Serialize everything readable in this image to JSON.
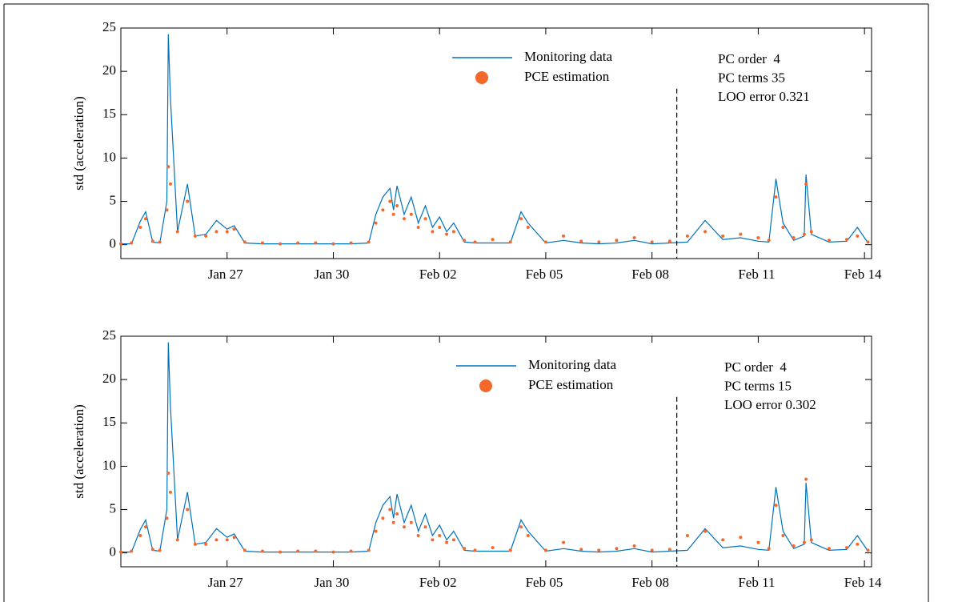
{
  "chart_data": [
    {
      "type": "line",
      "y_label": "std (acceleration)",
      "xlim": [
        24,
        45.2
      ],
      "ylim": [
        -1.6,
        25
      ],
      "xticks": [
        {
          "value": 27,
          "label": "Jan 27"
        },
        {
          "value": 30,
          "label": "Jan 30"
        },
        {
          "value": 33,
          "label": "Feb 02"
        },
        {
          "value": 36,
          "label": "Feb 05"
        },
        {
          "value": 39,
          "label": "Feb 08"
        },
        {
          "value": 42,
          "label": "Feb 11"
        },
        {
          "value": 45,
          "label": "Feb 14"
        }
      ],
      "yticks": [
        0,
        5,
        10,
        15,
        20,
        25
      ],
      "vline": {
        "x": 39.7,
        "ymax": 18
      },
      "annotations": [
        "PC order  4",
        "PC terms 35",
        "LOO error 0.321"
      ],
      "x": [
        24.0,
        24.3,
        24.55,
        24.7,
        24.9,
        25.1,
        25.3,
        25.34,
        25.4,
        25.6,
        25.88,
        26.1,
        26.4,
        26.7,
        27.0,
        27.2,
        27.5,
        28.0,
        28.5,
        29.0,
        29.5,
        30.0,
        30.5,
        31.0,
        31.2,
        31.4,
        31.6,
        31.7,
        31.8,
        32.0,
        32.2,
        32.4,
        32.6,
        32.8,
        33.0,
        33.2,
        33.4,
        33.7,
        34.0,
        34.5,
        35.0,
        35.3,
        35.5,
        36.0,
        36.5,
        37.0,
        37.5,
        38.0,
        38.5,
        39.0,
        39.5,
        40.0,
        40.5,
        41.0,
        41.5,
        42.0,
        42.3,
        42.5,
        42.7,
        43.0,
        43.3,
        43.35,
        43.5,
        44.0,
        44.5,
        44.8,
        45.1
      ],
      "series": [
        {
          "name": "Monitoring data",
          "style": "line",
          "color": "#0072bd",
          "values": [
            0.1,
            0.1,
            2.7,
            3.8,
            0.3,
            0.2,
            5,
            24.3,
            17,
            1.5,
            7,
            1,
            1.2,
            2.8,
            1.8,
            2.2,
            0.2,
            0.1,
            0.1,
            0.1,
            0.1,
            0.1,
            0.1,
            0.2,
            3.5,
            5.5,
            6.5,
            4,
            6.8,
            3.5,
            5.5,
            2.5,
            4.5,
            2,
            3.2,
            1.5,
            2.5,
            0.3,
            0.2,
            0.2,
            0.2,
            3.8,
            2.5,
            0.2,
            0.5,
            0.2,
            0.1,
            0.2,
            0.5,
            0.1,
            0.2,
            0.3,
            2.8,
            0.6,
            0.8,
            0.4,
            0.3,
            7.6,
            2.5,
            0.5,
            1,
            8.1,
            1.2,
            0.3,
            0.4,
            2,
            0.2
          ]
        },
        {
          "name": "PCE estimation",
          "style": "markers",
          "color": "#f4692b",
          "values": [
            0.1,
            0.2,
            2,
            3,
            0.4,
            0.3,
            4,
            9,
            7,
            1.5,
            5,
            1,
            1,
            1.5,
            1.5,
            1.8,
            0.3,
            0.2,
            0.1,
            0.2,
            0.2,
            0.1,
            0.2,
            0.3,
            2.5,
            4,
            5,
            3.5,
            4.5,
            3,
            3.5,
            2,
            3,
            1.5,
            2,
            1.2,
            1.5,
            0.5,
            0.3,
            0.6,
            0.3,
            3,
            2,
            0.3,
            1,
            0.4,
            0.3,
            0.5,
            0.8,
            0.3,
            0.4,
            1,
            1.5,
            1,
            1.2,
            0.8,
            0.5,
            5.5,
            2,
            0.8,
            1.2,
            7,
            1.5,
            0.5,
            0.6,
            1,
            0.3
          ]
        }
      ]
    },
    {
      "type": "line",
      "y_label": "std (acceleration)",
      "xlim": [
        24,
        45.2
      ],
      "ylim": [
        -1.6,
        25
      ],
      "xticks": [
        {
          "value": 27,
          "label": "Jan 27"
        },
        {
          "value": 30,
          "label": "Jan 30"
        },
        {
          "value": 33,
          "label": "Feb 02"
        },
        {
          "value": 36,
          "label": "Feb 05"
        },
        {
          "value": 39,
          "label": "Feb 08"
        },
        {
          "value": 42,
          "label": "Feb 11"
        },
        {
          "value": 45,
          "label": "Feb 14"
        }
      ],
      "yticks": [
        0,
        5,
        10,
        15,
        20,
        25
      ],
      "vline": {
        "x": 39.7,
        "ymax": 18
      },
      "annotations": [
        "PC order  4",
        "PC terms 15",
        "LOO error 0.302"
      ],
      "x": [
        24.0,
        24.3,
        24.55,
        24.7,
        24.9,
        25.1,
        25.3,
        25.34,
        25.4,
        25.6,
        25.88,
        26.1,
        26.4,
        26.7,
        27.0,
        27.2,
        27.5,
        28.0,
        28.5,
        29.0,
        29.5,
        30.0,
        30.5,
        31.0,
        31.2,
        31.4,
        31.6,
        31.7,
        31.8,
        32.0,
        32.2,
        32.4,
        32.6,
        32.8,
        33.0,
        33.2,
        33.4,
        33.7,
        34.0,
        34.5,
        35.0,
        35.3,
        35.5,
        36.0,
        36.5,
        37.0,
        37.5,
        38.0,
        38.5,
        39.0,
        39.5,
        40.0,
        40.5,
        41.0,
        41.5,
        42.0,
        42.3,
        42.5,
        42.7,
        43.0,
        43.3,
        43.35,
        43.5,
        44.0,
        44.5,
        44.8,
        45.1
      ],
      "series": [
        {
          "name": "Monitoring data",
          "style": "line",
          "color": "#0072bd",
          "values": [
            0.1,
            0.1,
            2.7,
            3.8,
            0.3,
            0.2,
            5,
            24.3,
            17,
            1.5,
            7,
            1,
            1.2,
            2.8,
            1.8,
            2.2,
            0.2,
            0.1,
            0.1,
            0.1,
            0.1,
            0.1,
            0.1,
            0.2,
            3.5,
            5.5,
            6.5,
            4,
            6.8,
            3.5,
            5.5,
            2.5,
            4.5,
            2,
            3.2,
            1.5,
            2.5,
            0.3,
            0.2,
            0.2,
            0.2,
            3.8,
            2.5,
            0.2,
            0.5,
            0.2,
            0.1,
            0.2,
            0.5,
            0.1,
            0.2,
            0.3,
            2.8,
            0.6,
            0.8,
            0.4,
            0.3,
            7.6,
            2.5,
            0.5,
            1,
            8.1,
            1.2,
            0.3,
            0.4,
            2,
            0.2
          ]
        },
        {
          "name": "PCE estimation",
          "style": "markers",
          "color": "#f4692b",
          "values": [
            0.1,
            0.2,
            2,
            3,
            0.4,
            0.3,
            4,
            9.2,
            7,
            1.5,
            5,
            1,
            1,
            1.5,
            1.5,
            1.8,
            0.3,
            0.2,
            0.1,
            0.2,
            0.2,
            0.1,
            0.2,
            0.3,
            2.5,
            4,
            5,
            3.5,
            4.5,
            3,
            3.5,
            2,
            3,
            1.5,
            2,
            1.2,
            1.5,
            0.5,
            0.3,
            0.6,
            0.3,
            3,
            2,
            0.3,
            1.2,
            0.4,
            0.3,
            0.5,
            0.8,
            0.3,
            0.4,
            2,
            2.5,
            1.5,
            1.8,
            1.2,
            0.5,
            5.5,
            2,
            0.8,
            1.2,
            8.5,
            1.5,
            0.5,
            0.6,
            1,
            0.3
          ]
        }
      ]
    }
  ]
}
